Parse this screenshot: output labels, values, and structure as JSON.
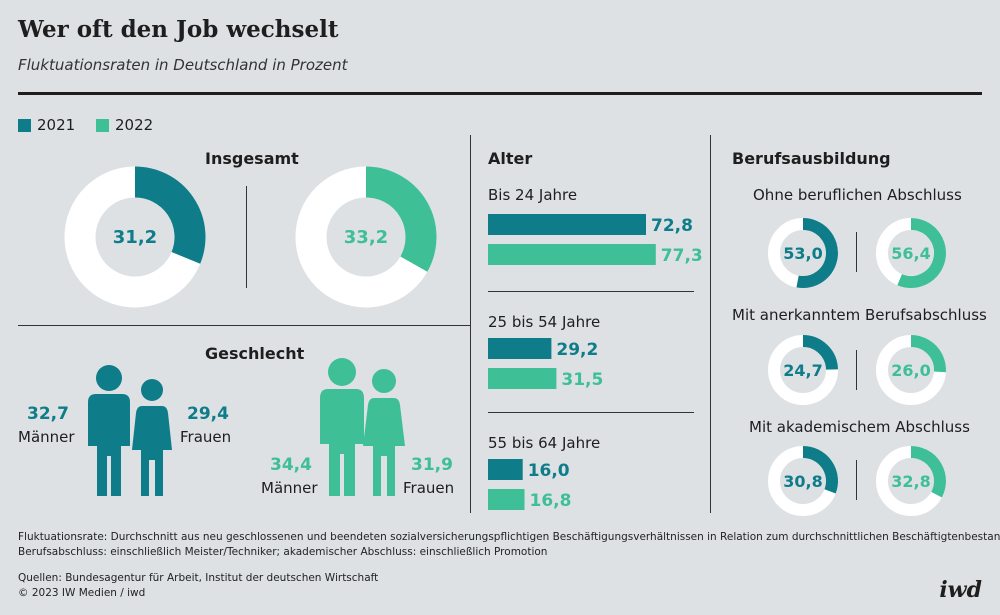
{
  "header": {
    "title": "Wer oft den Job wechselt",
    "subtitle": "Fluktuationsraten in Deutschland in Prozent"
  },
  "legend": [
    {
      "label": "2021",
      "color": "#0e7c89"
    },
    {
      "label": "2022",
      "color": "#3fbf95"
    }
  ],
  "colors": {
    "y2021": "#0e7c89",
    "y2022": "#3fbf95",
    "ring_bg": "#ffffff"
  },
  "sections": {
    "insgesamt": "Insgesamt",
    "geschlecht": "Geschlecht",
    "alter": "Alter",
    "beruf": "Berufsausbildung"
  },
  "chart_data": [
    {
      "type": "pie",
      "title": "Insgesamt",
      "series": [
        {
          "name": "2021",
          "value": 31.2,
          "label": "31,2"
        },
        {
          "name": "2022",
          "value": 33.2,
          "label": "33,2"
        }
      ]
    },
    {
      "type": "table",
      "title": "Geschlecht",
      "series": [
        {
          "name": "2021",
          "maenner": 32.7,
          "maenner_label": "32,7",
          "frauen": 29.4,
          "frauen_label": "29,4"
        },
        {
          "name": "2022",
          "maenner": 34.4,
          "maenner_label": "34,4",
          "frauen": 31.9,
          "frauen_label": "31,9"
        }
      ],
      "categories": [
        "Männer",
        "Frauen"
      ]
    },
    {
      "type": "bar",
      "title": "Alter",
      "categories": [
        "Bis 24 Jahre",
        "25 bis 54 Jahre",
        "55 bis 64 Jahre"
      ],
      "series": [
        {
          "name": "2021",
          "values": [
            72.8,
            29.2,
            16.0
          ],
          "labels": [
            "72,8",
            "29,2",
            "16,0"
          ]
        },
        {
          "name": "2022",
          "values": [
            77.3,
            31.5,
            16.8
          ],
          "labels": [
            "77,3",
            "31,5",
            "16,8"
          ]
        }
      ]
    },
    {
      "type": "pie",
      "title": "Berufsausbildung",
      "categories": [
        "Ohne beruflichen Abschluss",
        "Mit anerkanntem Berufsabschluss",
        "Mit akademischem Abschluss"
      ],
      "series": [
        {
          "name": "2021",
          "values": [
            53.0,
            24.7,
            30.8
          ],
          "labels": [
            "53,0",
            "24,7",
            "30,8"
          ]
        },
        {
          "name": "2022",
          "values": [
            56.4,
            26.0,
            32.8
          ],
          "labels": [
            "56,4",
            "26,0",
            "32,8"
          ]
        }
      ]
    }
  ],
  "footer": {
    "note1": "Fluktuationsrate: Durchschnitt aus neu geschlossenen und beendeten sozialversicherungspflichtigen Beschäftigungsverhältnissen in Relation zum durchschnittlichen Beschäftigtenbestand;",
    "note2": "Berufsabschluss: einschließlich Meister/Techniker; akademischer Abschluss: einschließlich Promotion",
    "sources": "Quellen: Bundesagentur für Arbeit, Institut der deutschen Wirtschaft",
    "copyright": "© 2023 IW Medien / iwd",
    "logo": "iwd"
  }
}
